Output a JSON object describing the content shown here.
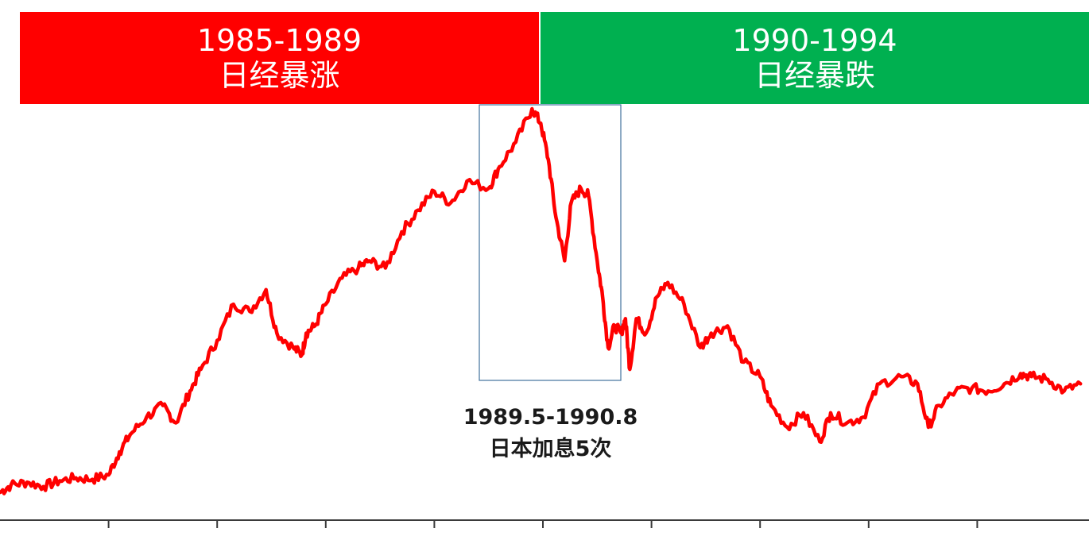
{
  "colors": {
    "rise": "#ff0000",
    "fall": "#00b050",
    "line": "#ff0000",
    "box": "#41719c",
    "axis": "#3a3a3a"
  },
  "bands": [
    {
      "years": "1985-1989",
      "label": "日经暴涨"
    },
    {
      "years": "1990-1994",
      "label": "日经暴跌"
    }
  ],
  "annotation": {
    "period": "1989.5-1990.8",
    "text": "日本加息5次"
  },
  "chart_data": {
    "type": "line",
    "title": "",
    "xlabel": "",
    "ylabel": "",
    "x_range": [
      1985.0,
      1995.0
    ],
    "grid": false,
    "series": [
      {
        "x": [
          1985.0,
          1985.1,
          1985.25,
          1985.4,
          1985.55,
          1985.7,
          1985.85,
          1986.0,
          1986.1,
          1986.2,
          1986.35,
          1986.5,
          1986.62,
          1986.75,
          1986.85,
          1987.0,
          1987.15,
          1987.3,
          1987.45,
          1987.55,
          1987.7,
          1987.78,
          1987.82,
          1987.9,
          1988.0,
          1988.15,
          1988.3,
          1988.4,
          1988.55,
          1988.7,
          1988.85,
          1989.0,
          1989.15,
          1989.3,
          1989.5,
          1989.6,
          1989.75,
          1989.9,
          1989.98,
          1990.05,
          1990.12,
          1990.2,
          1990.26,
          1990.35,
          1990.42,
          1990.5,
          1990.55,
          1990.6,
          1990.66,
          1990.72,
          1990.76,
          1990.8,
          1990.86,
          1990.95,
          1991.05,
          1991.15,
          1991.3,
          1991.45,
          1991.55,
          1991.7,
          1991.85,
          1992.0,
          1992.1,
          1992.25,
          1992.4,
          1992.55,
          1992.65,
          1992.8,
          1992.95,
          1993.1,
          1993.3,
          1993.45,
          1993.55,
          1993.65,
          1993.8,
          1993.95,
          1994.1,
          1994.25,
          1994.4,
          1994.5,
          1994.65,
          1994.8,
          1994.95
        ],
        "y": [
          12000,
          12500,
          12700,
          12400,
          12800,
          13000,
          12900,
          13200,
          14800,
          16000,
          17200,
          18000,
          16800,
          19000,
          20500,
          22500,
          25000,
          24500,
          26000,
          23000,
          22000,
          21500,
          23000,
          23500,
          25000,
          26800,
          27500,
          28000,
          27500,
          30000,
          31500,
          32800,
          32000,
          33500,
          33000,
          34500,
          36200,
          38500,
          37500,
          35000,
          31000,
          28000,
          32000,
          33000,
          32500,
          28000,
          25500,
          22000,
          23500,
          23000,
          24000,
          20500,
          24000,
          23000,
          25500,
          26500,
          25000,
          22000,
          23000,
          23500,
          21000,
          20000,
          18000,
          16500,
          17500,
          15500,
          17500,
          16800,
          17200,
          19500,
          20000,
          19500,
          16500,
          18000,
          19000,
          19200,
          19000,
          19500,
          20200,
          20000,
          19800,
          19000,
          19500
        ]
      }
    ]
  }
}
